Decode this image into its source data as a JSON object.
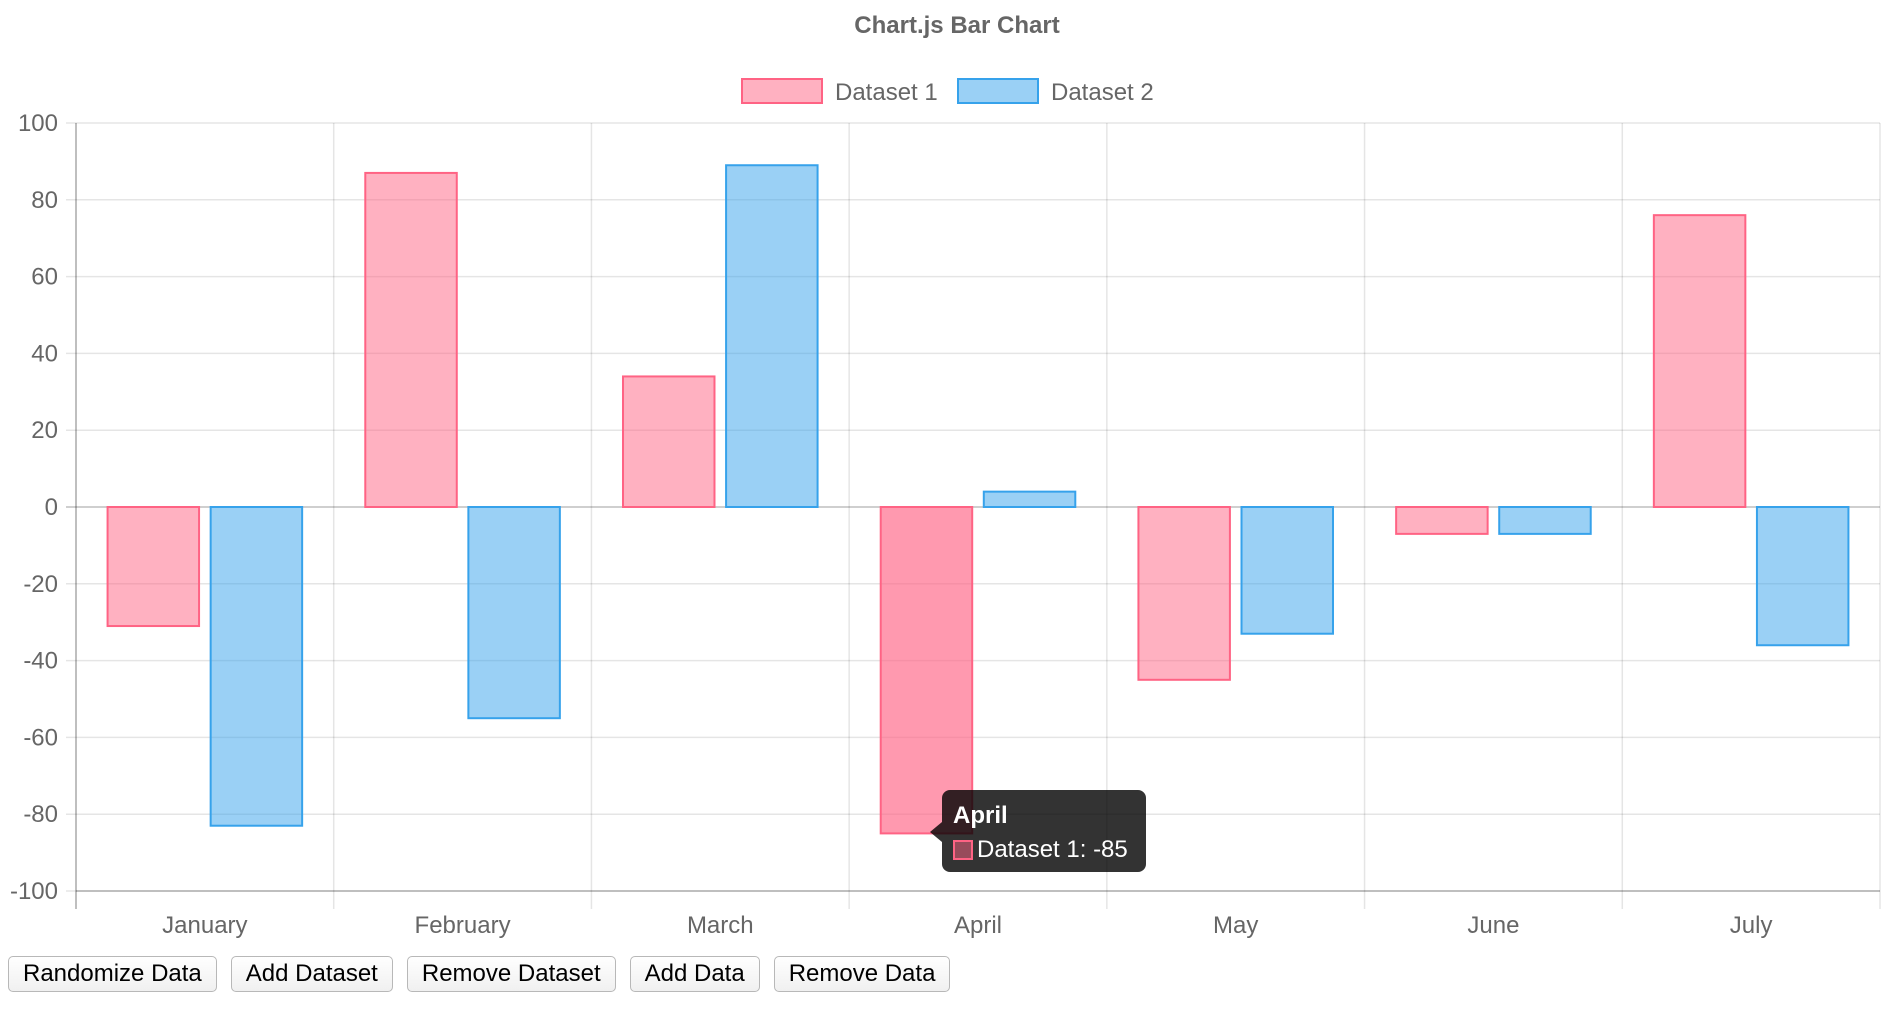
{
  "chart_data": {
    "type": "bar",
    "title": "Chart.js Bar Chart",
    "categories": [
      "January",
      "February",
      "March",
      "April",
      "May",
      "June",
      "July"
    ],
    "series": [
      {
        "name": "Dataset 1",
        "values": [
          -31,
          87,
          34,
          -85,
          -45,
          -7,
          76
        ],
        "fill": "rgba(255,99,132,0.5)",
        "stroke": "#ff6384"
      },
      {
        "name": "Dataset 2",
        "values": [
          -83,
          -55,
          89,
          4,
          -33,
          -7,
          -36
        ],
        "fill": "rgba(54,162,235,0.5)",
        "stroke": "#36a2eb"
      }
    ],
    "ylim": [
      -100,
      100
    ],
    "yticks": [
      100,
      80,
      60,
      40,
      20,
      0,
      -20,
      -40,
      -60,
      -80,
      -100
    ],
    "grid": true,
    "legend_position": "top",
    "hovered": {
      "category_index": 3,
      "series_index": 0
    }
  },
  "tooltip": {
    "title": "April",
    "body": "Dataset 1: -85"
  },
  "controls": {
    "randomize": "Randomize Data",
    "add_dataset": "Add Dataset",
    "remove_dataset": "Remove Dataset",
    "add_data": "Add Data",
    "remove_data": "Remove Data"
  }
}
